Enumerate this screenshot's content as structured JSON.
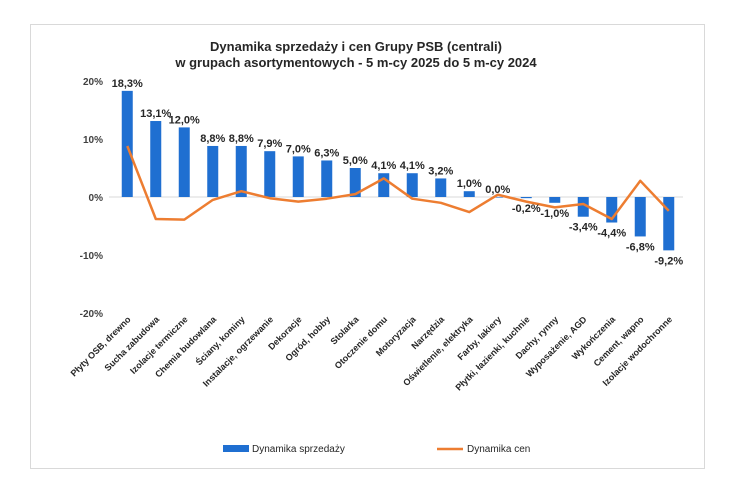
{
  "chart_data": {
    "type": "bar",
    "title": "Dynamika sprzedaży i cen Grupy PSB (centrali)",
    "subtitle": "w grupach asortymentowych - 5 m-cy 2025 do 5 m-cy 2024",
    "categories": [
      "Płyty OSB, drewno",
      "Sucha zabudowa",
      "Izolacje termiczne",
      "Chemia budowlana",
      "Ściany, kominy",
      "Instalacje, ogrzewanie",
      "Dekoracje",
      "Ogród, hobby",
      "Stolarka",
      "Otoczenie domu",
      "Motoryzacja",
      "Narzędzia",
      "Oświetlenie, elektryka",
      "Farby, lakiery",
      "Płytki, łazienki, kuchnie",
      "Dachy, rynny",
      "Wyposażenie, AGD",
      "Wykończenia",
      "Cement, wapno",
      "Izolacje wodochronne"
    ],
    "series": [
      {
        "name": "Dynamika sprzedaży",
        "type": "bar",
        "color": "#1f6fd1",
        "values": [
          18.3,
          13.1,
          12.0,
          8.8,
          8.8,
          7.9,
          7.0,
          6.3,
          5.0,
          4.1,
          4.1,
          3.2,
          1.0,
          0.0,
          -0.2,
          -1.0,
          -3.4,
          -4.4,
          -6.8,
          -9.2
        ],
        "labels": [
          "18,3%",
          "13,1%",
          "12,0%",
          "8,8%",
          "8,8%",
          "7,9%",
          "7,0%",
          "6,3%",
          "5,0%",
          "4,1%",
          "4,1%",
          "3,2%",
          "1,0%",
          "0,0%",
          "-0,2%",
          "-1,0%",
          "-3,4%",
          "-4,4%",
          "-6,8%",
          "-9,2%"
        ]
      },
      {
        "name": "Dynamika cen",
        "type": "line",
        "color": "#ed7d31",
        "values": [
          8.8,
          -3.8,
          -3.9,
          -0.5,
          1.0,
          -0.2,
          -0.8,
          -0.3,
          0.5,
          3.2,
          -0.3,
          -1.0,
          -2.6,
          0.4,
          -0.8,
          -1.8,
          -1.2,
          -3.8,
          2.8,
          -2.4
        ]
      }
    ],
    "yticks": [
      "20%",
      "10%",
      "0%",
      "-10%",
      "-20%"
    ],
    "ylim": [
      -20,
      20
    ],
    "xlabel": "",
    "ylabel": "",
    "grid": false,
    "legend": "bottom"
  }
}
